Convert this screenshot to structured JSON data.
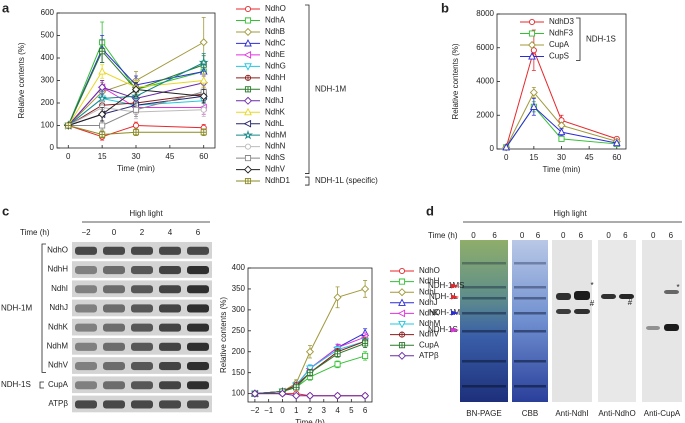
{
  "chart_data": [
    {
      "type": "line",
      "panel_label": "a",
      "xlabel": "Time (min)",
      "ylabel": "Relative contents (%)",
      "x": [
        0,
        15,
        30,
        60
      ],
      "xlim": [
        -5,
        65
      ],
      "xticks": [
        0,
        15,
        30,
        45,
        60
      ],
      "ylim": [
        0,
        600
      ],
      "yticks": [
        0,
        100,
        200,
        300,
        400,
        500,
        600
      ],
      "legend_groups": [
        "NDH-1M",
        "NDH-1L (specific)"
      ],
      "series": [
        {
          "name": "NdhO",
          "color": "#e8262b",
          "marker": "circle",
          "values": [
            100,
            50,
            100,
            90
          ],
          "errors": [
            0,
            15,
            15,
            15
          ]
        },
        {
          "name": "NdhA",
          "color": "#33c033",
          "marker": "square",
          "values": [
            100,
            470,
            260,
            340
          ],
          "errors": [
            0,
            90,
            40,
            50
          ]
        },
        {
          "name": "NdhB",
          "color": "#a0983a",
          "marker": "diamond",
          "values": [
            100,
            250,
            300,
            470
          ],
          "errors": [
            0,
            40,
            40,
            110
          ]
        },
        {
          "name": "NdhC",
          "color": "#2b2bd8",
          "marker": "triangle-up",
          "values": [
            100,
            440,
            280,
            340
          ],
          "errors": [
            0,
            60,
            40,
            40
          ]
        },
        {
          "name": "NdhE",
          "color": "#e030e0",
          "marker": "triangle-left",
          "values": [
            100,
            270,
            180,
            180
          ],
          "errors": [
            0,
            30,
            30,
            30
          ]
        },
        {
          "name": "NdhG",
          "color": "#20c8e0",
          "marker": "triangle-down",
          "values": [
            100,
            220,
            190,
            210
          ],
          "errors": [
            0,
            30,
            30,
            30
          ]
        },
        {
          "name": "NdhH",
          "color": "#8b1c1c",
          "marker": "circle-plus",
          "values": [
            100,
            190,
            200,
            240
          ],
          "errors": [
            0,
            30,
            30,
            30
          ]
        },
        {
          "name": "NdhI",
          "color": "#2a7a2a",
          "marker": "square-plus",
          "values": [
            100,
            430,
            260,
            370
          ],
          "errors": [
            0,
            50,
            40,
            40
          ]
        },
        {
          "name": "NdhJ",
          "color": "#6a2aa8",
          "marker": "diamond",
          "values": [
            100,
            270,
            220,
            290
          ],
          "errors": [
            0,
            30,
            30,
            30
          ]
        },
        {
          "name": "NdhK",
          "color": "#e8d820",
          "marker": "triangle-up",
          "values": [
            100,
            340,
            270,
            300
          ],
          "errors": [
            0,
            30,
            30,
            30
          ]
        },
        {
          "name": "NdhL",
          "color": "#25256e",
          "marker": "triangle-left",
          "values": [
            100,
            150,
            190,
            230
          ],
          "errors": [
            0,
            30,
            30,
            30
          ]
        },
        {
          "name": "NdhM",
          "color": "#188888",
          "marker": "star",
          "values": [
            100,
            220,
            230,
            380
          ],
          "errors": [
            0,
            30,
            30,
            40
          ]
        },
        {
          "name": "NdhN",
          "color": "#bbbbbb",
          "marker": "circle",
          "values": [
            100,
            180,
            160,
            170
          ],
          "errors": [
            0,
            30,
            30,
            30
          ]
        },
        {
          "name": "NdhS",
          "color": "#888888",
          "marker": "square",
          "values": [
            100,
            100,
            170,
            250
          ],
          "errors": [
            0,
            20,
            30,
            30
          ]
        },
        {
          "name": "NdhV",
          "color": "#222222",
          "marker": "diamond",
          "values": [
            100,
            150,
            260,
            230
          ],
          "errors": [
            0,
            30,
            30,
            30
          ]
        },
        {
          "name": "NdhD1",
          "color": "#8a8a22",
          "marker": "square-plus",
          "values": [
            100,
            60,
            70,
            70
          ],
          "errors": [
            0,
            15,
            15,
            15
          ]
        }
      ]
    },
    {
      "type": "line",
      "panel_label": "b",
      "xlabel": "Time (min)",
      "ylabel": "Relative contents (%)",
      "x": [
        0,
        15,
        30,
        60
      ],
      "xlim": [
        -5,
        65
      ],
      "xticks": [
        0,
        15,
        30,
        45,
        60
      ],
      "ylim": [
        0,
        8000
      ],
      "yticks": [
        0,
        2000,
        4000,
        6000,
        8000
      ],
      "legend_groups": [
        "NDH-1S"
      ],
      "series": [
        {
          "name": "NdhD3",
          "color": "#e8262b",
          "marker": "circle",
          "values": [
            100,
            5850,
            1700,
            600
          ],
          "errors": [
            0,
            1200,
            300,
            100
          ]
        },
        {
          "name": "NdhF3",
          "color": "#33c033",
          "marker": "square",
          "values": [
            100,
            2500,
            600,
            300
          ],
          "errors": [
            0,
            300,
            100,
            50
          ]
        },
        {
          "name": "CupA",
          "color": "#a0983a",
          "marker": "diamond",
          "values": [
            100,
            3350,
            1400,
            450
          ],
          "errors": [
            0,
            300,
            150,
            60
          ]
        },
        {
          "name": "CupS",
          "color": "#2b2bd8",
          "marker": "triangle-up",
          "values": [
            100,
            2500,
            1000,
            350
          ],
          "errors": [
            0,
            500,
            200,
            80
          ]
        }
      ]
    },
    {
      "type": "line",
      "xlabel": "Time (h)",
      "ylabel": "Relative contents (%)",
      "x": [
        -2,
        0,
        1,
        2,
        4,
        6
      ],
      "xlim": [
        -2.5,
        6.5
      ],
      "xticks": [
        {
          "value": -2,
          "label": "−2"
        },
        {
          "value": -1,
          "label": "−1"
        },
        0,
        1,
        2,
        3,
        4,
        5,
        6
      ],
      "ylim": [
        80,
        400
      ],
      "yticks": [
        100,
        150,
        200,
        250,
        300,
        350,
        400
      ],
      "series": [
        {
          "name": "NdhO",
          "color": "#e8262b",
          "marker": "circle",
          "values": [
            100,
            100,
            100,
            95,
            95,
            95
          ],
          "errors": [
            0,
            3,
            3,
            3,
            3,
            3
          ]
        },
        {
          "name": "NdhH",
          "color": "#33c033",
          "marker": "square",
          "values": [
            100,
            105,
            115,
            140,
            170,
            190
          ],
          "errors": [
            0,
            3,
            5,
            8,
            8,
            10
          ]
        },
        {
          "name": "NdhI",
          "color": "#a0983a",
          "marker": "diamond",
          "values": [
            100,
            105,
            125,
            200,
            330,
            350
          ],
          "errors": [
            0,
            5,
            8,
            15,
            25,
            20
          ]
        },
        {
          "name": "NdhJ",
          "color": "#2b2bd8",
          "marker": "triangle-up",
          "values": [
            100,
            105,
            120,
            160,
            210,
            245
          ],
          "errors": [
            0,
            3,
            5,
            8,
            8,
            10
          ]
        },
        {
          "name": "NdhK",
          "color": "#e030e0",
          "marker": "triangle-left",
          "values": [
            100,
            105,
            120,
            160,
            210,
            235
          ],
          "errors": [
            0,
            3,
            5,
            8,
            8,
            10
          ]
        },
        {
          "name": "NdhM",
          "color": "#20c8e0",
          "marker": "triangle-down",
          "values": [
            100,
            105,
            120,
            160,
            205,
            225
          ],
          "errors": [
            0,
            3,
            5,
            8,
            8,
            10
          ]
        },
        {
          "name": "NdhV",
          "color": "#8b1c1c",
          "marker": "circle-plus",
          "values": [
            100,
            105,
            120,
            150,
            200,
            225
          ],
          "errors": [
            0,
            3,
            5,
            8,
            8,
            10
          ]
        },
        {
          "name": "CupA",
          "color": "#2a7a2a",
          "marker": "square-plus",
          "values": [
            100,
            105,
            115,
            150,
            195,
            220
          ],
          "errors": [
            0,
            3,
            5,
            8,
            8,
            10
          ]
        },
        {
          "name": "ATPβ",
          "color": "#6a2aa8",
          "marker": "diamond",
          "values": [
            100,
            100,
            95,
            95,
            95,
            95
          ],
          "errors": [
            0,
            3,
            3,
            3,
            3,
            3
          ]
        }
      ]
    }
  ],
  "blot_c": {
    "panel_label": "c",
    "condition": "High light",
    "time_label": "Time (h)",
    "times": [
      "−2",
      "0",
      "2",
      "4",
      "6"
    ],
    "rows": [
      "NdhO",
      "NdhH",
      "NdhI",
      "NdhJ",
      "NdhK",
      "NdhM",
      "NdhV",
      "CupA",
      "ATPβ"
    ],
    "groups": [
      "NDH-1M",
      "NDH-1S"
    ]
  },
  "blot_d": {
    "panel_label": "d",
    "condition": "High light",
    "time_label": "Time (h)",
    "lanes": [
      "0",
      "6"
    ],
    "panels": [
      "BN-PAGE",
      "CBB",
      "Anti-NdhI",
      "Anti-NdhO",
      "Anti-CupA"
    ],
    "complexes": [
      "NDH-1MS",
      "NDH-1L",
      "NDH-1M",
      "NDH-1S"
    ],
    "annotations": [
      "*",
      "#"
    ]
  }
}
